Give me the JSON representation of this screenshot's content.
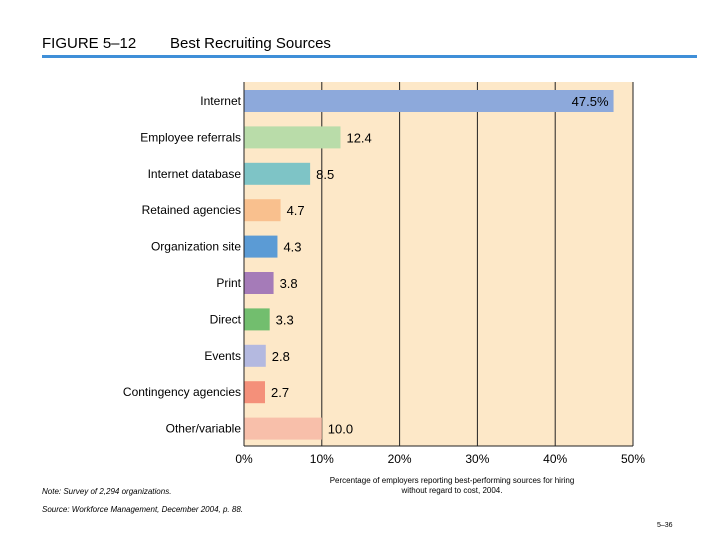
{
  "header": {
    "figure_number": "FIGURE 5–12",
    "title": "Best Recruiting Sources",
    "rule_color": "#3f8fd8"
  },
  "chart_data": {
    "type": "bar",
    "orientation": "horizontal",
    "title": "Best Recruiting Sources",
    "categories": [
      "Internet",
      "Employee referrals",
      "Internet database",
      "Retained agencies",
      "Organization site",
      "Print",
      "Direct",
      "Events",
      "Contingency agencies",
      "Other/variable"
    ],
    "values": [
      47.5,
      12.4,
      8.5,
      4.7,
      4.3,
      3.8,
      3.3,
      2.8,
      2.7,
      10.0
    ],
    "value_labels": [
      "47.5%",
      "12.4",
      "8.5",
      "4.7",
      "4.3",
      "3.8",
      "3.3",
      "2.8",
      "2.7",
      "10.0"
    ],
    "bar_colors": [
      "#8da9db",
      "#b9dca9",
      "#7ec4c6",
      "#f9c08e",
      "#5b9bd5",
      "#a57bb8",
      "#72be6e",
      "#b4b9e0",
      "#f4907a",
      "#f8bfaa"
    ],
    "xlim": [
      0,
      50
    ],
    "xticks": [
      0,
      10,
      20,
      30,
      40,
      50
    ],
    "xtick_labels": [
      "0%",
      "10%",
      "20%",
      "30%",
      "40%",
      "50%"
    ],
    "background_color": "#fde8c8",
    "grid": true,
    "xlabel": "Percentage of employers reporting best-performing sources for hiring without regard to cost, 2004."
  },
  "footer": {
    "caption": "Percentage of employers reporting best-performing sources for hiring without regard to cost, 2004.",
    "note": "Note: Survey of 2,294 organizations.",
    "source": "Source: Workforce Management, December 2004, p. 88.",
    "page_number": "5–36"
  }
}
